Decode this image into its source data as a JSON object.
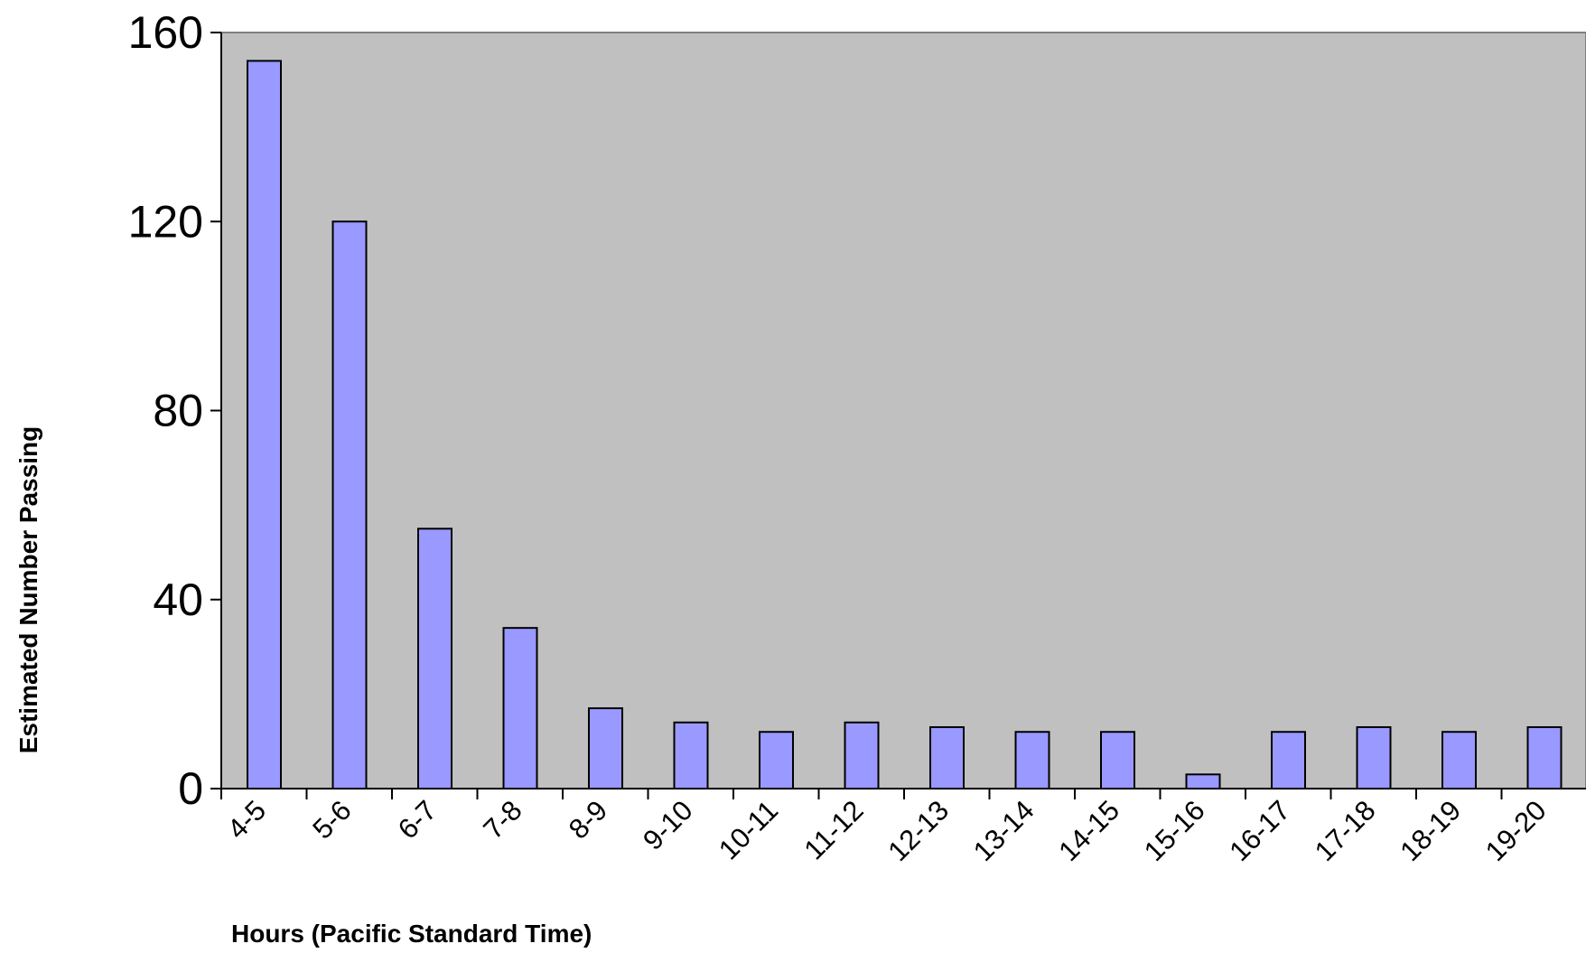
{
  "chart_data": {
    "type": "bar",
    "title": "",
    "xlabel": "Hours (Pacific Standard Time)",
    "ylabel": "Estimated Number Passing",
    "categories": [
      "4-5",
      "5-6",
      "6-7",
      "7-8",
      "8-9",
      "9-10",
      "10-11",
      "11-12",
      "12-13",
      "13-14",
      "14-15",
      "15-16",
      "16-17",
      "17-18",
      "18-19",
      "19-20"
    ],
    "values": [
      154,
      120,
      55,
      34,
      17,
      14,
      12,
      14,
      13,
      12,
      12,
      3,
      12,
      13,
      12,
      13
    ],
    "ylim": [
      0,
      160
    ],
    "yticks": [
      "0",
      "40",
      "80",
      "120",
      "160"
    ],
    "grid": false,
    "legend": "none",
    "colors": {
      "plot_background": "#c0c0c0",
      "bar_fill": "#9999ff",
      "bar_stroke": "#000000"
    }
  }
}
